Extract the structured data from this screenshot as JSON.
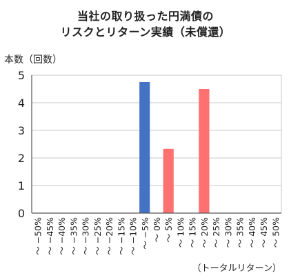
{
  "chart_data": {
    "type": "bar",
    "title_line1": "当社の取り扱った円満債の",
    "title_line2": "リスクとリターン実績（未償還）",
    "ylabel": "本数（回数）",
    "xlabel": "（トータルリターン）",
    "ylim": [
      0,
      5
    ],
    "yticks": [
      0,
      1,
      2,
      3,
      4,
      5
    ],
    "grid": true,
    "categories": [
      "～ −50%",
      "～ −45%",
      "～ −40%",
      "～ −35%",
      "～ −30%",
      "～ −25%",
      "～ −20%",
      "～ −15%",
      "～ −10%",
      "～ −5%",
      "～ 0%",
      "～ 5%",
      "～ 10%",
      "～ 15%",
      "～ 20%",
      "～ 25%",
      "～ 30%",
      "～ 35%",
      "～ 40%",
      "～ 45%",
      "～ 50%"
    ],
    "values": [
      0,
      0,
      0,
      0,
      0,
      0,
      0,
      0,
      0,
      4.75,
      0,
      2.33,
      0,
      0,
      4.5,
      0,
      0,
      0,
      0,
      0,
      0
    ],
    "colors": {
      "negative": "#4472C4",
      "positive": "#FF7070",
      "grid": "#c8c8c8",
      "axis": "#555555"
    }
  }
}
